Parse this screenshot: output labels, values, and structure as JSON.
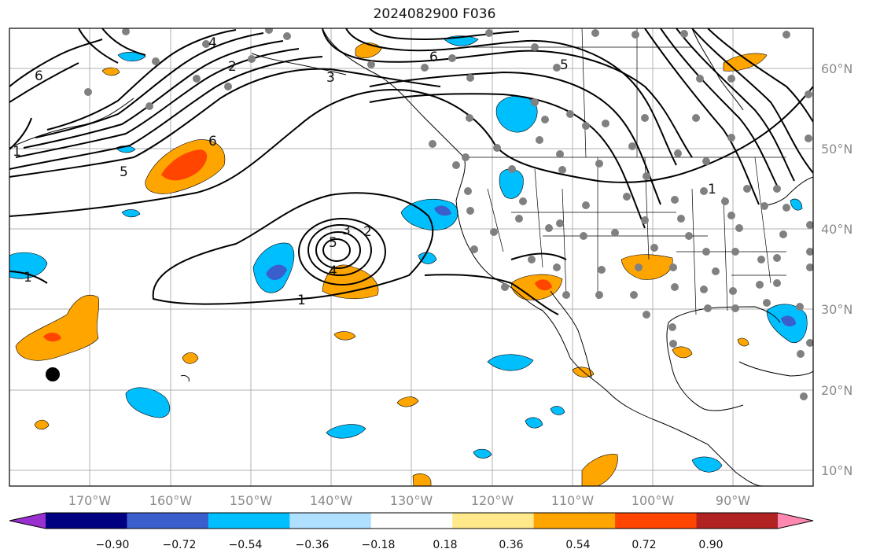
{
  "title": "2024082900 F036",
  "map": {
    "lon_ticks": [
      "170°W",
      "160°W",
      "150°W",
      "140°W",
      "130°W",
      "120°W",
      "110°W",
      "100°W",
      "90°W"
    ],
    "lat_ticks": [
      "60°N",
      "50°N",
      "40°N",
      "30°N",
      "20°N",
      "10°N"
    ],
    "contour_labels": [
      "6",
      "4",
      "2",
      "3",
      "6",
      "5",
      "5",
      "1",
      "1",
      "2",
      "3",
      "5",
      "4",
      "1",
      "1",
      "6"
    ]
  },
  "colorbar": {
    "labels": [
      "−0.90",
      "−0.72",
      "−0.54",
      "−0.36",
      "−0.18",
      "0.18",
      "0.36",
      "0.54",
      "0.72",
      "0.90"
    ],
    "colors": [
      "#9b30d0",
      "#000080",
      "#3a5fcd",
      "#00bfff",
      "#b0e0ff",
      "#ffffff",
      "#ffe98a",
      "#ffa500",
      "#ff4500",
      "#b22222",
      "#ff88b0"
    ]
  }
}
